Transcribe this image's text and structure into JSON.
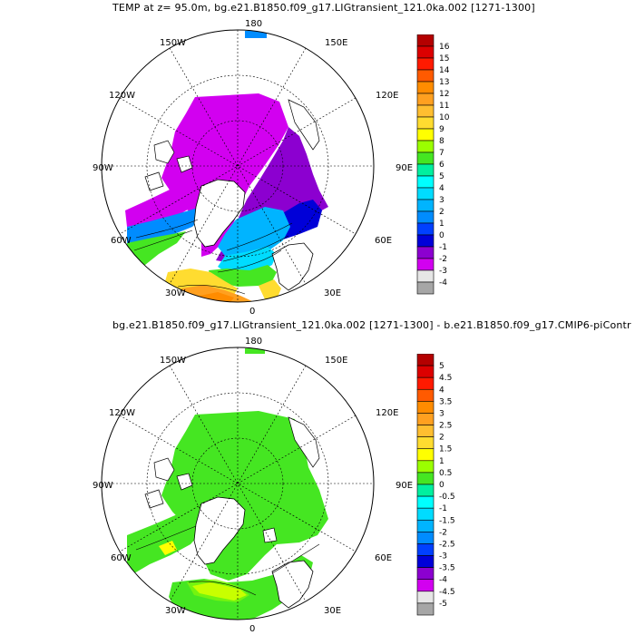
{
  "panel_top": {
    "title": "TEMP at z=  95.0m, bg.e21.B1850.f09_g17.LIGtransient_121.0ka.002 [1271-1300]",
    "lon_labels": {
      "top": "180",
      "bottom": "0",
      "left": "90W",
      "right": "90E",
      "ul": "150W",
      "ur": "150E",
      "ml_up": "120W",
      "mr_up": "120E",
      "ml_low": "60W",
      "mr_low": "60E",
      "ll": "30W",
      "lr": "30E"
    },
    "colorbar": {
      "labels": [
        "16",
        "15",
        "14",
        "13",
        "12",
        "11",
        "10",
        "9",
        "8",
        "7",
        "6",
        "5",
        "4",
        "3",
        "2",
        "1",
        "0",
        "-1",
        "-2",
        "-3",
        "-4"
      ],
      "colors": [
        "#b40000",
        "#dc0000",
        "#ff1a00",
        "#ff5a00",
        "#ff8c00",
        "#ffa020",
        "#ffbe30",
        "#ffdc30",
        "#ffff00",
        "#9bff00",
        "#45e622",
        "#00f0a0",
        "#00ffff",
        "#00dcff",
        "#00b4ff",
        "#008cff",
        "#0040ff",
        "#0000d8",
        "#8c00d0",
        "#d200f0",
        "#e6e6e6",
        "#a6a6a6"
      ]
    }
  },
  "panel_bottom": {
    "title": "bg.e21.B1850.f09_g17.LIGtransient_121.0ka.002 [1271-1300] - b.e21.B1850.f09_g17.CMIP6-piContr",
    "lon_labels": {
      "top": "180",
      "bottom": "0",
      "left": "90W",
      "right": "90E",
      "ul": "150W",
      "ur": "150E",
      "ml_up": "120W",
      "mr_up": "120E",
      "ml_low": "60W",
      "mr_low": "60E",
      "ll": "30W",
      "lr": "30E"
    },
    "colorbar": {
      "labels": [
        "5",
        "4.5",
        "4",
        "3.5",
        "3",
        "2.5",
        "2",
        "1.5",
        "1",
        "0.5",
        "0",
        "-0.5",
        "-1",
        "-1.5",
        "-2",
        "-2.5",
        "-3",
        "-3.5",
        "-4",
        "-4.5",
        "-5"
      ],
      "colors": [
        "#b40000",
        "#dc0000",
        "#ff1a00",
        "#ff5a00",
        "#ff8c00",
        "#ffa020",
        "#ffbe30",
        "#ffdc30",
        "#ffff00",
        "#9bff00",
        "#45e622",
        "#00f0a0",
        "#00ffff",
        "#00dcff",
        "#00b4ff",
        "#008cff",
        "#0040ff",
        "#0000d8",
        "#8c00d0",
        "#d200f0",
        "#e6e6e6",
        "#a6a6a6"
      ]
    }
  }
}
